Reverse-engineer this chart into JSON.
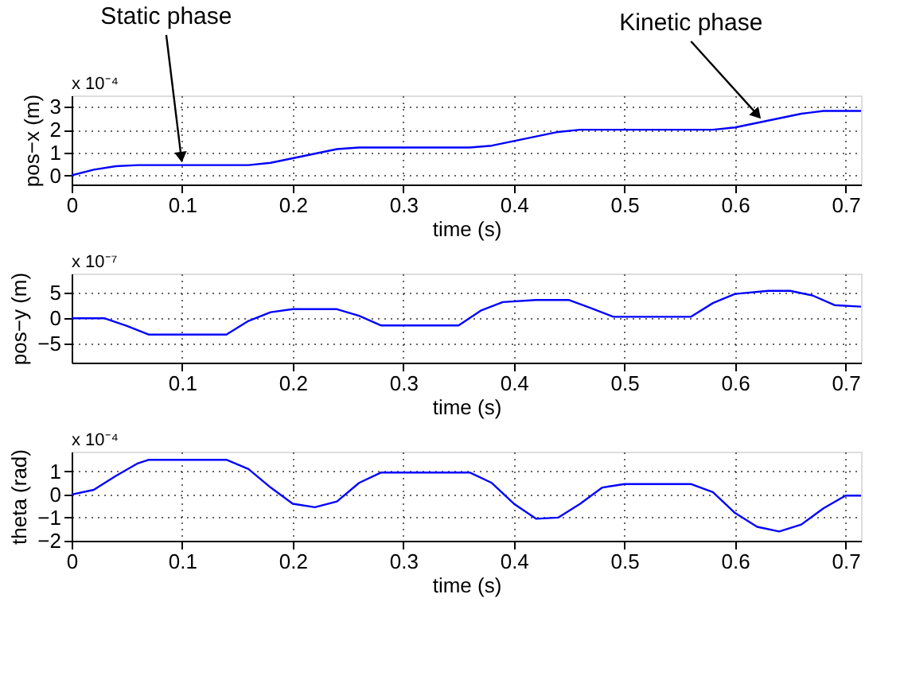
{
  "chart_data": [
    {
      "type": "line",
      "xlabel": "time (s)",
      "ylabel": "pos−x (m)",
      "xlim": [
        0,
        0.714
      ],
      "xticks": [
        0,
        0.1,
        0.2,
        0.3,
        0.4,
        0.5,
        0.6,
        0.7
      ],
      "ylim": [
        -0.4,
        3.5
      ],
      "yticks": [
        0,
        1,
        2,
        3
      ],
      "grid": true,
      "legend": false,
      "marker": "none",
      "line_style": "solid",
      "annotations": [
        "x 10⁻⁴",
        {
          "text": "Static phase",
          "x": 0.1,
          "y": 0.45
        },
        {
          "text": "Kinetic phase",
          "x": 0.625,
          "y": 2.4
        }
      ],
      "series": [
        {
          "color": "#0000ff",
          "x": [
            0,
            0.02,
            0.04,
            0.06,
            0.1,
            0.16,
            0.18,
            0.2,
            0.22,
            0.24,
            0.26,
            0.3,
            0.36,
            0.38,
            0.4,
            0.42,
            0.44,
            0.46,
            0.5,
            0.58,
            0.6,
            0.62,
            0.64,
            0.66,
            0.68,
            0.714
          ],
          "values": [
            0,
            0.25,
            0.4,
            0.45,
            0.45,
            0.45,
            0.55,
            0.75,
            0.95,
            1.15,
            1.22,
            1.22,
            1.22,
            1.3,
            1.5,
            1.7,
            1.9,
            2.0,
            2.0,
            2.0,
            2.1,
            2.3,
            2.5,
            2.7,
            2.82,
            2.82
          ]
        }
      ]
    },
    {
      "type": "line",
      "xlabel": "time (s)",
      "ylabel": "pos−y (m)",
      "xlim": [
        0,
        0.714
      ],
      "xticks": [
        0.1,
        0.2,
        0.3,
        0.4,
        0.5,
        0.6,
        0.7
      ],
      "ylim": [
        -8.7,
        8.8
      ],
      "yticks": [
        -5,
        0,
        5
      ],
      "grid": true,
      "legend": false,
      "marker": "none",
      "line_style": "solid",
      "annotations": [
        "x 10⁻⁷"
      ],
      "series": [
        {
          "color": "#0000ff",
          "x": [
            0,
            0.03,
            0.05,
            0.07,
            0.14,
            0.16,
            0.18,
            0.2,
            0.24,
            0.26,
            0.28,
            0.35,
            0.37,
            0.39,
            0.42,
            0.45,
            0.47,
            0.49,
            0.56,
            0.58,
            0.6,
            0.63,
            0.65,
            0.67,
            0.69,
            0.714
          ],
          "values": [
            0,
            0,
            -1.5,
            -3.2,
            -3.2,
            -0.5,
            1.2,
            1.8,
            1.8,
            0.5,
            -1.4,
            -1.4,
            1.5,
            3.2,
            3.6,
            3.6,
            2,
            0.3,
            0.3,
            3,
            4.8,
            5.4,
            5.4,
            4.5,
            2.6,
            2.3
          ]
        }
      ]
    },
    {
      "type": "line",
      "xlabel": "time (s)",
      "ylabel": "theta (rad)",
      "xlim": [
        0,
        0.714
      ],
      "xticks": [
        0,
        0.1,
        0.2,
        0.3,
        0.4,
        0.5,
        0.6,
        0.7
      ],
      "ylim": [
        -2,
        1.85
      ],
      "yticks": [
        -2,
        -1,
        0,
        1
      ],
      "grid": true,
      "legend": false,
      "marker": "none",
      "line_style": "solid",
      "annotations": [
        "x 10⁻⁴"
      ],
      "series": [
        {
          "color": "#0000ff",
          "x": [
            0,
            0.02,
            0.04,
            0.06,
            0.07,
            0.14,
            0.16,
            0.18,
            0.2,
            0.22,
            0.24,
            0.26,
            0.28,
            0.36,
            0.38,
            0.4,
            0.42,
            0.44,
            0.46,
            0.48,
            0.5,
            0.56,
            0.58,
            0.6,
            0.62,
            0.64,
            0.66,
            0.68,
            0.7,
            0.714
          ],
          "values": [
            0,
            0.2,
            0.8,
            1.35,
            1.5,
            1.5,
            1.1,
            0.3,
            -0.4,
            -0.55,
            -0.3,
            0.5,
            0.95,
            0.95,
            0.5,
            -0.4,
            -1.05,
            -1.0,
            -0.4,
            0.3,
            0.45,
            0.45,
            0.1,
            -0.8,
            -1.4,
            -1.6,
            -1.3,
            -0.6,
            -0.05,
            -0.05
          ]
        }
      ]
    }
  ]
}
